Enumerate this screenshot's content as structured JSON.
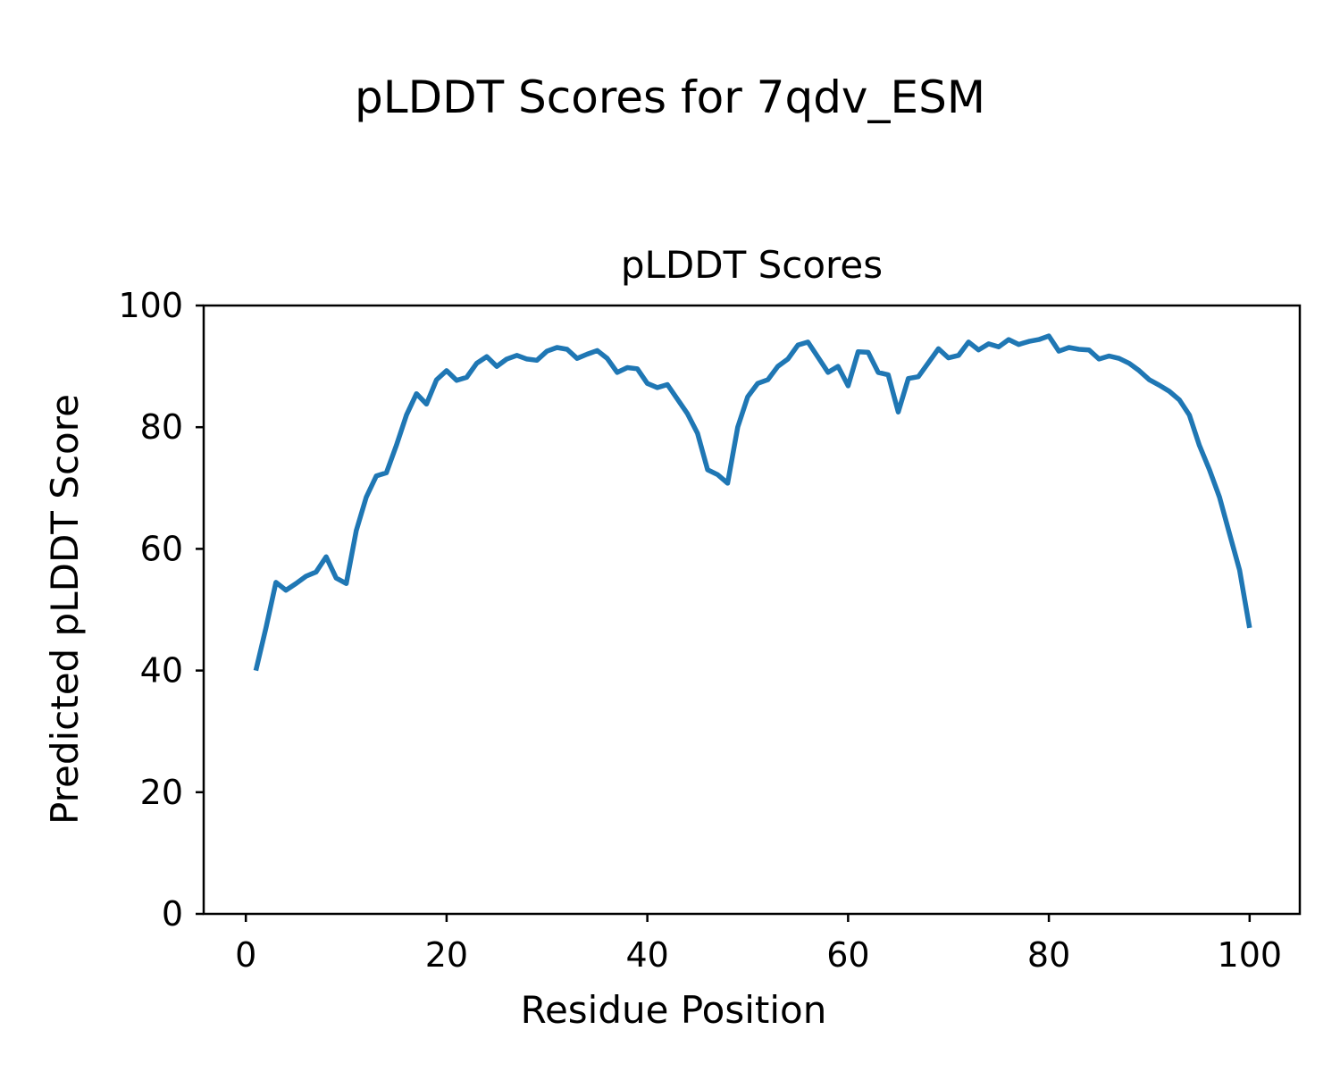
{
  "figure": {
    "suptitle": "pLDDT Scores for 7qdv_ESM"
  },
  "chart_data": {
    "type": "line",
    "title": "pLDDT Scores",
    "xlabel": "Residue Position",
    "ylabel": "Predicted pLDDT Score",
    "x_ticks": [
      0,
      20,
      40,
      60,
      80,
      100
    ],
    "y_ticks": [
      0,
      20,
      40,
      60,
      80,
      100
    ],
    "xlim": [
      -4.2,
      105
    ],
    "ylim": [
      0,
      100
    ],
    "grid": false,
    "legend": "none",
    "line_color": "#1f77b4",
    "series": [
      {
        "name": "pLDDT",
        "x": [
          1,
          2,
          3,
          4,
          5,
          6,
          7,
          8,
          9,
          10,
          11,
          12,
          13,
          14,
          15,
          16,
          17,
          18,
          19,
          20,
          21,
          22,
          23,
          24,
          25,
          26,
          27,
          28,
          29,
          30,
          31,
          32,
          33,
          34,
          35,
          36,
          37,
          38,
          39,
          40,
          41,
          42,
          43,
          44,
          45,
          46,
          47,
          48,
          49,
          50,
          51,
          52,
          53,
          54,
          55,
          56,
          57,
          58,
          59,
          60,
          61,
          62,
          63,
          64,
          65,
          66,
          67,
          68,
          69,
          70,
          71,
          72,
          73,
          74,
          75,
          76,
          77,
          78,
          79,
          80,
          81,
          82,
          83,
          84,
          85,
          86,
          87,
          88,
          89,
          90,
          91,
          92,
          93,
          94,
          95,
          96,
          97,
          98,
          99,
          100
        ],
        "values": [
          40,
          47,
          54.5,
          53.2,
          54.3,
          55.5,
          56.2,
          58.7,
          55.2,
          54.3,
          63,
          68.5,
          72,
          72.5,
          77,
          82,
          85.5,
          83.8,
          87.8,
          89.3,
          87.7,
          88.2,
          90.5,
          91.6,
          90,
          91.2,
          91.8,
          91.2,
          91,
          92.5,
          93.1,
          92.8,
          91.3,
          92,
          92.6,
          91.3,
          89,
          89.8,
          89.6,
          87.2,
          86.5,
          87,
          84.6,
          82.2,
          79,
          73,
          72.2,
          70.8,
          80,
          85,
          87.2,
          87.8,
          90,
          91.2,
          93.5,
          94,
          91.5,
          89,
          90,
          86.8,
          92.4,
          92.3,
          89,
          88.6,
          82.5,
          88,
          88.3,
          90.6,
          92.9,
          91.4,
          91.8,
          94,
          92.7,
          93.7,
          93.2,
          94.4,
          93.6,
          94.1,
          94.4,
          95,
          92.5,
          93.1,
          92.8,
          92.7,
          91.2,
          91.7,
          91.3,
          90.5,
          89.3,
          87.8,
          86.9,
          85.9,
          84.5,
          82,
          77,
          73,
          68.5,
          62.5,
          56.5,
          47
        ]
      }
    ]
  }
}
